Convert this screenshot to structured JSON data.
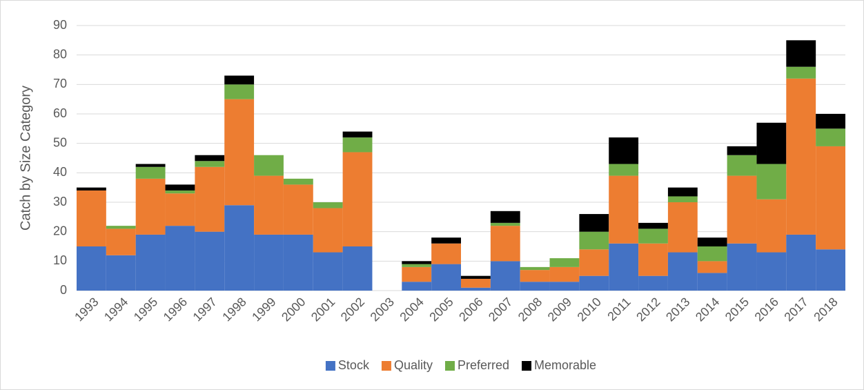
{
  "chart_data": {
    "type": "stacked_bar",
    "ylabel": "Catch by Size Category",
    "categories": [
      "1993",
      "1994",
      "1995",
      "1996",
      "1997",
      "1998",
      "1999",
      "2000",
      "2001",
      "2002",
      "2003",
      "2004",
      "2005",
      "2006",
      "2007",
      "2008",
      "2009",
      "2010",
      "2011",
      "2012",
      "2013",
      "2014",
      "2015",
      "2016",
      "2017",
      "2018"
    ],
    "series": [
      {
        "name": "Stock",
        "color": "#4472c4",
        "values": [
          15,
          12,
          19,
          22,
          20,
          29,
          19,
          19,
          13,
          15,
          0,
          3,
          9,
          1,
          10,
          3,
          3,
          5,
          16,
          5,
          13,
          6,
          16,
          13,
          19,
          14
        ]
      },
      {
        "name": "Quality",
        "color": "#ed7d31",
        "values": [
          19,
          9,
          19,
          11,
          22,
          36,
          20,
          17,
          15,
          32,
          0,
          5,
          7,
          3,
          12,
          4,
          5,
          9,
          23,
          11,
          17,
          4,
          23,
          18,
          53,
          35
        ]
      },
      {
        "name": "Preferred",
        "color": "#70ad47",
        "values": [
          0,
          1,
          4,
          1,
          2,
          5,
          7,
          2,
          2,
          5,
          0,
          1,
          0,
          0,
          1,
          1,
          3,
          6,
          4,
          5,
          2,
          5,
          7,
          12,
          4,
          6
        ]
      },
      {
        "name": "Memorable",
        "color": "#000000",
        "values": [
          1,
          0,
          1,
          2,
          2,
          3,
          0,
          0,
          0,
          2,
          0,
          1,
          2,
          1,
          4,
          0,
          0,
          6,
          9,
          2,
          3,
          3,
          3,
          14,
          9,
          5
        ]
      }
    ],
    "ylim": [
      0,
      90
    ],
    "yticks": [
      0,
      10,
      20,
      30,
      40,
      50,
      60,
      70,
      80,
      90
    ],
    "grid": true,
    "legend": "bottom"
  }
}
